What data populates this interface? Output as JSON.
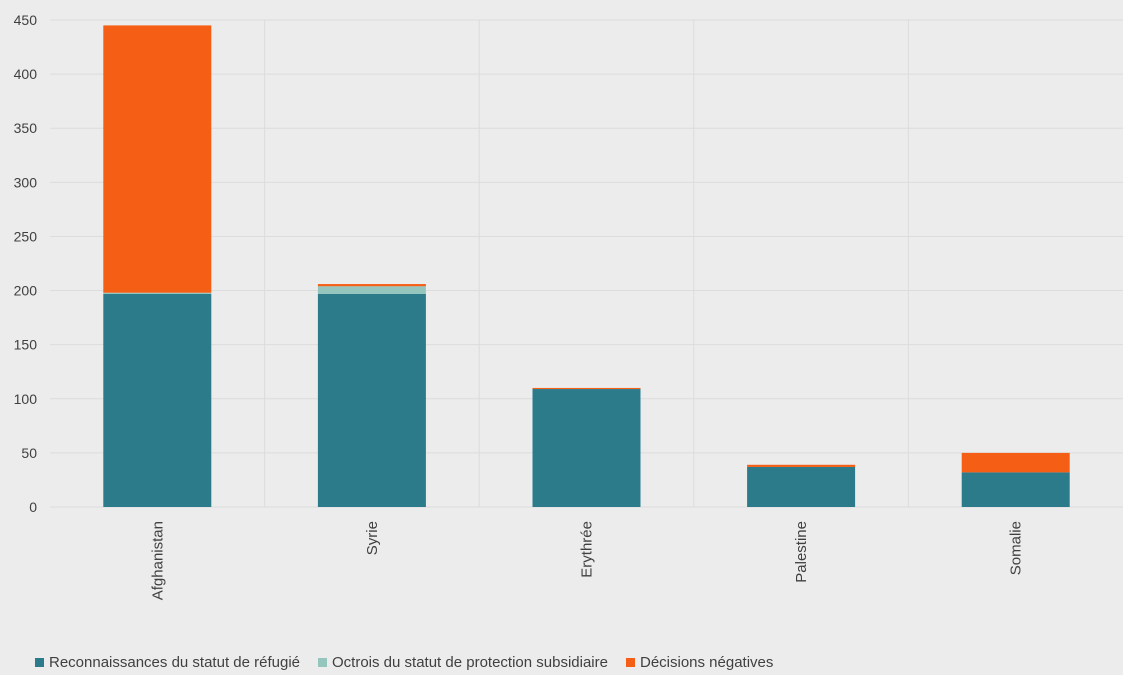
{
  "chart_data": {
    "type": "bar",
    "stacked": true,
    "title": "",
    "xlabel": "",
    "ylabel": "",
    "ylim": [
      0,
      450
    ],
    "yticks": [
      0,
      50,
      100,
      150,
      200,
      250,
      300,
      350,
      400,
      450
    ],
    "grid": true,
    "legend_position": "bottom-left",
    "categories": [
      "Afghanistan",
      "Syrie",
      "Erythrée",
      "Palestine",
      "Somalie"
    ],
    "series": [
      {
        "name": "Reconnaissances du statut de réfugié",
        "color": "#2b7b8b",
        "values": [
          197,
          197,
          109,
          37,
          32
        ]
      },
      {
        "name": "Octrois du statut de protection subsidiaire",
        "color": "#95c6bd",
        "values": [
          1,
          7,
          0,
          0,
          0
        ]
      },
      {
        "name": "Décisions négatives",
        "color": "#f45e15",
        "values": [
          247,
          2,
          1,
          2,
          18
        ]
      }
    ]
  }
}
